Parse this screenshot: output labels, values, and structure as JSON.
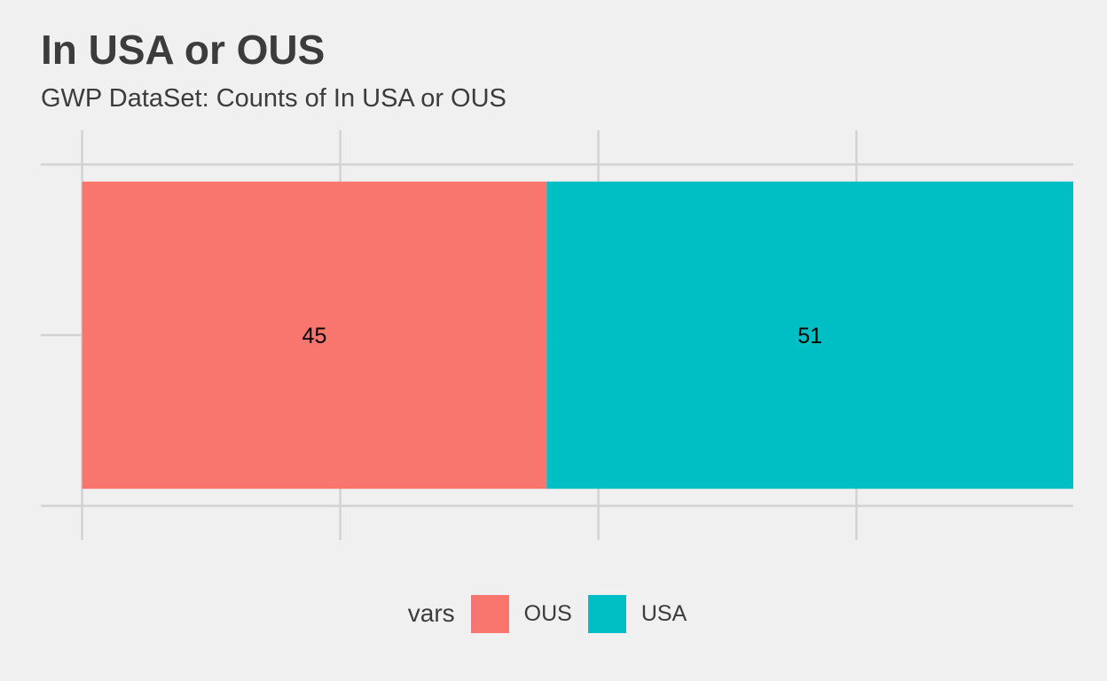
{
  "chart_data": {
    "type": "bar",
    "orientation": "horizontal-stacked",
    "title": "In USA or OUS",
    "subtitle": "GWP DataSet: Counts of In USA or OUS",
    "series": [
      {
        "name": "OUS",
        "value": 45,
        "color": "#f8766d",
        "label": "45"
      },
      {
        "name": "USA",
        "value": 51,
        "color": "#00bfc4",
        "label": "51"
      }
    ],
    "xlim": [
      -4,
      96
    ],
    "x_gridlines": [
      0,
      25,
      50,
      75,
      100
    ],
    "y_gridlines": [
      0.5,
      1.0,
      1.5
    ],
    "ylim": [
      0.4,
      1.6
    ],
    "bar_extent": [
      0.55,
      1.45
    ],
    "axis_tick_labels_shown": false,
    "grid": true,
    "legend": {
      "title": "vars",
      "placement": "bottom",
      "entries": [
        "OUS",
        "USA"
      ]
    }
  }
}
